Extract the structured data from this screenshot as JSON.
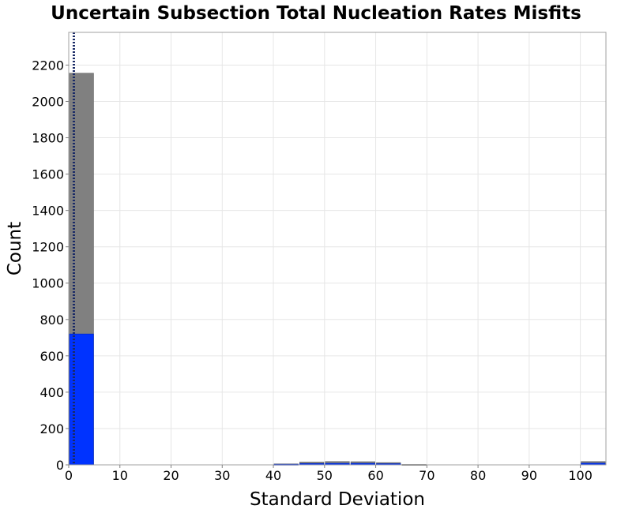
{
  "chart_data": {
    "type": "bar",
    "title": "Uncertain Subsection Total Nucleation Rates Misfits",
    "xlabel": "Standard Deviation",
    "ylabel": "Count",
    "xlim": [
      0,
      105
    ],
    "ylim": [
      0,
      2380
    ],
    "x_ticks": [
      0,
      10,
      20,
      30,
      40,
      50,
      60,
      70,
      80,
      90,
      100
    ],
    "y_ticks": [
      0,
      200,
      400,
      600,
      800,
      1000,
      1200,
      1400,
      1600,
      1800,
      2000,
      2200
    ],
    "grid": true,
    "legend": "none",
    "bin_width": 5,
    "series": [
      {
        "color": "#808080",
        "bins": [
          {
            "x0": 0,
            "x1": 5,
            "value": 2155
          },
          {
            "x0": 40,
            "x1": 45,
            "value": 5
          },
          {
            "x0": 45,
            "x1": 50,
            "value": 15
          },
          {
            "x0": 50,
            "x1": 55,
            "value": 18
          },
          {
            "x0": 55,
            "x1": 60,
            "value": 17
          },
          {
            "x0": 60,
            "x1": 65,
            "value": 12
          },
          {
            "x0": 65,
            "x1": 70,
            "value": 2
          },
          {
            "x0": 100,
            "x1": 105,
            "value": 18
          }
        ]
      },
      {
        "color": "#0033ff",
        "bins": [
          {
            "x0": 0,
            "x1": 5,
            "value": 720
          },
          {
            "x0": 40,
            "x1": 45,
            "value": 3
          },
          {
            "x0": 45,
            "x1": 50,
            "value": 7
          },
          {
            "x0": 50,
            "x1": 55,
            "value": 8
          },
          {
            "x0": 55,
            "x1": 60,
            "value": 8
          },
          {
            "x0": 60,
            "x1": 65,
            "value": 6
          },
          {
            "x0": 100,
            "x1": 105,
            "value": 9
          }
        ]
      }
    ],
    "reference_lines": [
      {
        "x": 1,
        "color": "#1a2a66",
        "style": "dotted"
      }
    ]
  }
}
